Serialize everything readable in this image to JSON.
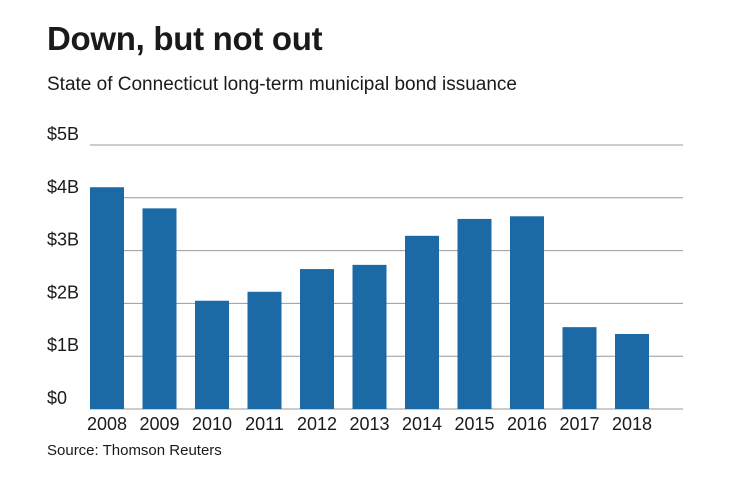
{
  "header": {
    "title": "Down, but not out",
    "subtitle": "State of Connecticut long-term municipal bond issuance"
  },
  "footer": {
    "source": "Source: Thomson Reuters"
  },
  "colors": {
    "bar": "#1b69a5",
    "grid": "#999999",
    "text": "#1a1a1a"
  },
  "chart_data": {
    "type": "bar",
    "title": "Down, but not out",
    "subtitle": "State of Connecticut long-term municipal bond issuance",
    "xlabel": "",
    "ylabel": "",
    "categories": [
      "2008",
      "2009",
      "2010",
      "2011",
      "2012",
      "2013",
      "2014",
      "2015",
      "2016",
      "2017",
      "2018"
    ],
    "values": [
      4.2,
      3.8,
      2.05,
      2.22,
      2.65,
      2.73,
      3.28,
      3.6,
      3.65,
      1.55,
      1.42
    ],
    "unit": "billion USD",
    "ylim": [
      0,
      5
    ],
    "yticks": [
      0,
      1,
      2,
      3,
      4,
      5
    ],
    "ytick_labels": [
      "$0",
      "$1B",
      "$2B",
      "$3B",
      "$4B",
      "$5B"
    ],
    "grid": true,
    "legend": "none"
  }
}
